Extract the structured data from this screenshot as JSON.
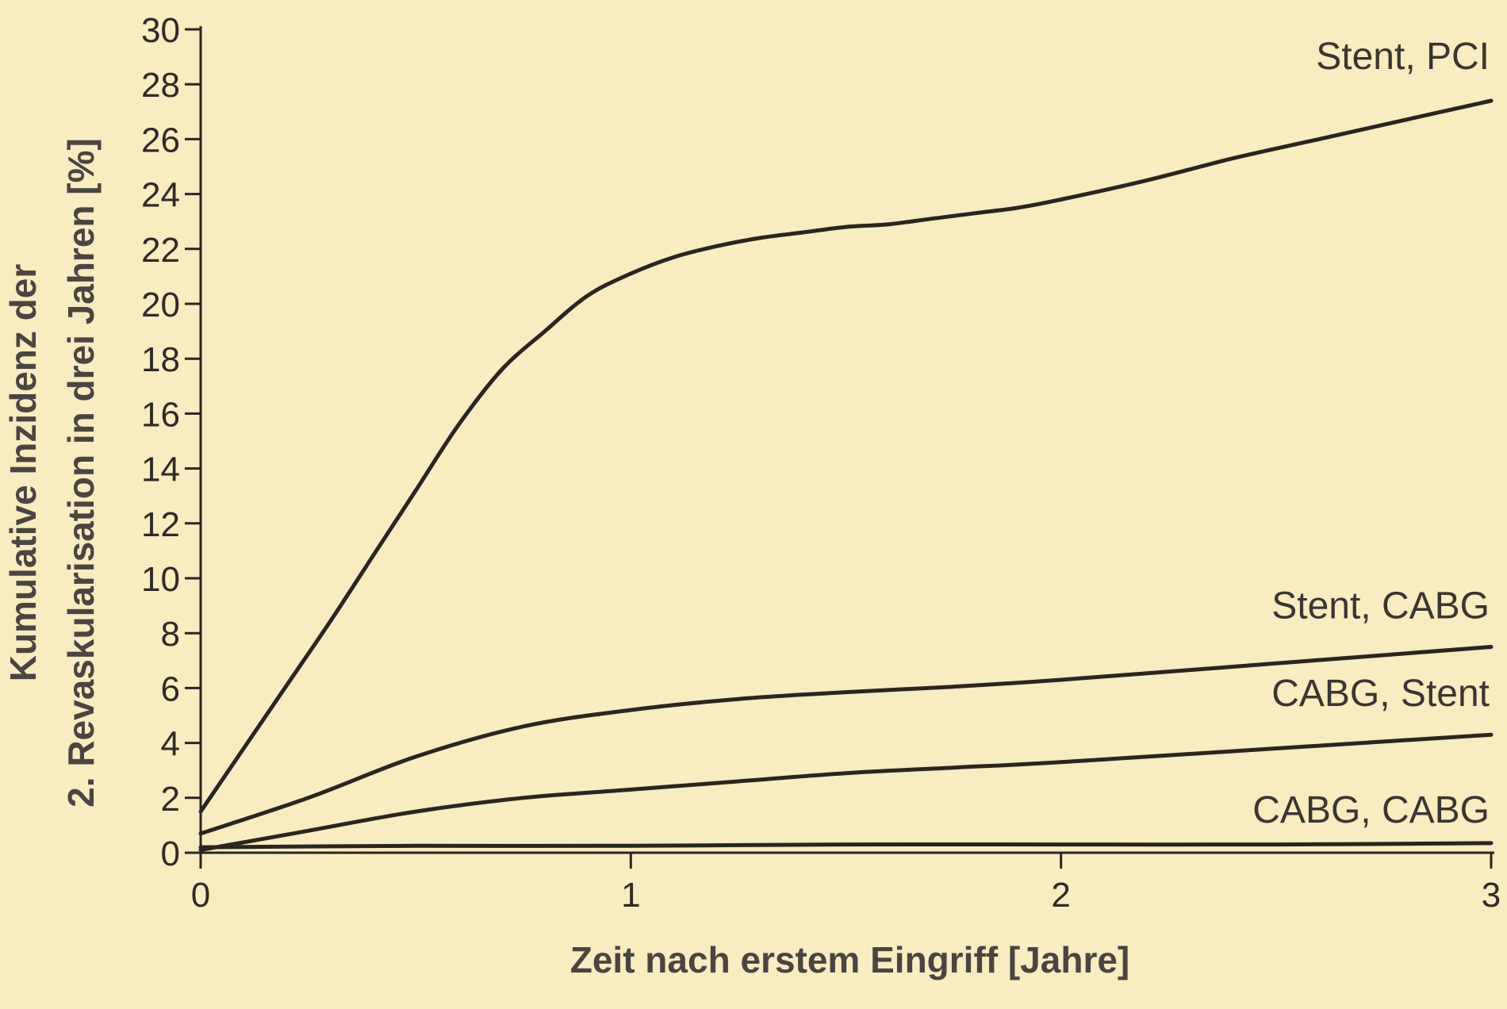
{
  "chart_data": {
    "type": "line",
    "title": "",
    "xlabel": "Zeit nach erstem Eingriff [Jahre]",
    "ylabel_lines": [
      "Kumulative Inzidenz der",
      "2. Revaskularisation in drei Jahren [%]"
    ],
    "xlim": [
      0,
      3
    ],
    "ylim": [
      0,
      30
    ],
    "x_ticks": [
      0,
      1,
      2,
      3
    ],
    "y_ticks": [
      0,
      2,
      4,
      6,
      8,
      10,
      12,
      14,
      16,
      18,
      20,
      22,
      24,
      26,
      28,
      30
    ],
    "grid": false,
    "line_color": "#2a2520",
    "series": [
      {
        "name": "Stent, PCI",
        "x": [
          0,
          0.1,
          0.2,
          0.3,
          0.4,
          0.5,
          0.6,
          0.7,
          0.8,
          0.9,
          1.0,
          1.1,
          1.2,
          1.3,
          1.4,
          1.5,
          1.6,
          1.7,
          1.8,
          1.9,
          2.0,
          2.2,
          2.4,
          2.6,
          2.8,
          3.0
        ],
        "y": [
          1.5,
          3.8,
          6.1,
          8.4,
          10.8,
          13.2,
          15.6,
          17.6,
          19.0,
          20.3,
          21.1,
          21.7,
          22.1,
          22.4,
          22.6,
          22.8,
          22.9,
          23.1,
          23.3,
          23.5,
          23.8,
          24.5,
          25.3,
          26.0,
          26.7,
          27.4
        ]
      },
      {
        "name": "Stent, CABG",
        "x": [
          0,
          0.25,
          0.5,
          0.75,
          1.0,
          1.25,
          1.5,
          1.75,
          2.0,
          2.5,
          3.0
        ],
        "y": [
          0.7,
          2.0,
          3.5,
          4.6,
          5.2,
          5.6,
          5.85,
          6.05,
          6.3,
          6.9,
          7.5
        ]
      },
      {
        "name": "CABG, Stent",
        "x": [
          0,
          0.25,
          0.5,
          0.75,
          1.0,
          1.25,
          1.5,
          1.75,
          2.0,
          2.5,
          3.0
        ],
        "y": [
          0.1,
          0.8,
          1.5,
          2.0,
          2.3,
          2.6,
          2.9,
          3.1,
          3.3,
          3.8,
          4.3
        ]
      },
      {
        "name": "CABG, CABG",
        "x": [
          0,
          0.5,
          1.0,
          1.5,
          2.0,
          2.5,
          3.0
        ],
        "y": [
          0.2,
          0.25,
          0.25,
          0.3,
          0.3,
          0.3,
          0.35
        ]
      }
    ]
  }
}
